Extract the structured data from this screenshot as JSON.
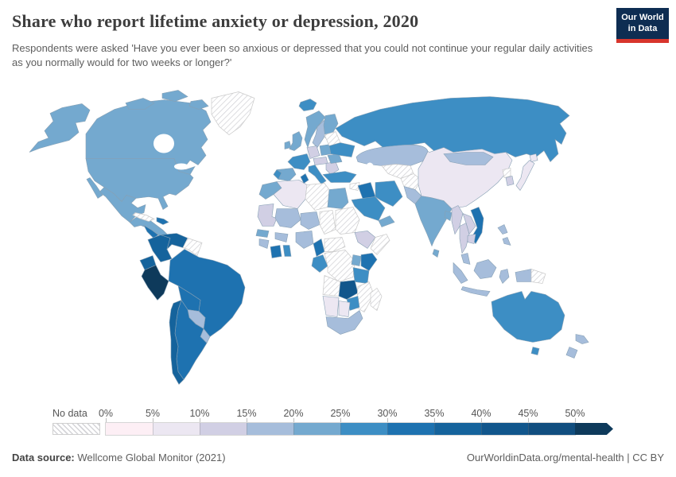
{
  "header": {
    "title": "Share who report lifetime anxiety or depression, 2020",
    "subtitle": "Respondents were asked 'Have you ever been so anxious or depressed that you could not continue your regular daily activities as you normally would for two weeks or longer?'",
    "logo": {
      "line1": "Our World",
      "line2": "in Data",
      "bg_color": "#0e2d52",
      "accent_color": "#d8352c"
    }
  },
  "footer": {
    "source_label": "Data source:",
    "source_value": "Wellcome Global Monitor (2021)",
    "attribution": "OurWorldinData.org/mental-health | CC BY"
  },
  "chart_data": {
    "type": "choropleth",
    "title": "Share who report lifetime anxiety or depression, 2020",
    "unit": "%",
    "legend": {
      "no_data_label": "No data",
      "tick_labels": [
        "0%",
        "5%",
        "10%",
        "15%",
        "20%",
        "25%",
        "30%",
        "35%",
        "40%",
        "45%",
        "50%"
      ],
      "bins": [
        {
          "label": "0-5%",
          "color": "#fdeff5"
        },
        {
          "label": "5-10%",
          "color": "#ece7f2"
        },
        {
          "label": "10-15%",
          "color": "#d1cfe4"
        },
        {
          "label": "15-20%",
          "color": "#a6bddb"
        },
        {
          "label": "20-25%",
          "color": "#74a9cf"
        },
        {
          "label": "25-30%",
          "color": "#3d8ec4"
        },
        {
          "label": "30-35%",
          "color": "#1e72b0"
        },
        {
          "label": "35-40%",
          "color": "#15639c"
        },
        {
          "label": "40-45%",
          "color": "#11568c"
        },
        {
          "label": "45-50%",
          "color": "#114e7f"
        },
        {
          "label": ">50%",
          "color": "#0e3a5b"
        }
      ],
      "no_data_pattern": "diagonal-hatch"
    },
    "regions": [
      {
        "id": "united-states",
        "name": "United States",
        "value": "20-25%"
      },
      {
        "id": "canada",
        "name": "Canada",
        "value": "20-25%"
      },
      {
        "id": "greenland",
        "name": "Greenland",
        "value": "No data"
      },
      {
        "id": "iceland",
        "name": "Iceland",
        "value": "25-30%"
      },
      {
        "id": "mexico",
        "name": "Mexico",
        "value": "20-25%"
      },
      {
        "id": "central-america",
        "name": "Central America",
        "value": "20-25%"
      },
      {
        "id": "nicaragua-costa-rica",
        "name": "Nicaragua / Costa Rica",
        "value": "30-35%"
      },
      {
        "id": "cuba",
        "name": "Cuba",
        "value": "No data"
      },
      {
        "id": "dominican-republic",
        "name": "Dominican Republic",
        "value": "30-35%"
      },
      {
        "id": "colombia",
        "name": "Colombia",
        "value": "35-40%"
      },
      {
        "id": "venezuela",
        "name": "Venezuela",
        "value": "35-40%"
      },
      {
        "id": "guyanas",
        "name": "Guyana / Suriname",
        "value": "No data"
      },
      {
        "id": "ecuador",
        "name": "Ecuador",
        "value": "35-40%"
      },
      {
        "id": "peru",
        "name": "Peru",
        "value": ">50%"
      },
      {
        "id": "brazil",
        "name": "Brazil",
        "value": "30-35%"
      },
      {
        "id": "bolivia",
        "name": "Bolivia",
        "value": "30-35%"
      },
      {
        "id": "paraguay",
        "name": "Paraguay",
        "value": "15-20%"
      },
      {
        "id": "uruguay",
        "name": "Uruguay",
        "value": "15-20%"
      },
      {
        "id": "argentina",
        "name": "Argentina",
        "value": "30-35%"
      },
      {
        "id": "chile",
        "name": "Chile",
        "value": "35-40%"
      },
      {
        "id": "norway",
        "name": "Norway",
        "value": "20-25%"
      },
      {
        "id": "sweden",
        "name": "Sweden",
        "value": "15-20%"
      },
      {
        "id": "finland",
        "name": "Finland",
        "value": "20-25%"
      },
      {
        "id": "denmark",
        "name": "Denmark",
        "value": "15-20%"
      },
      {
        "id": "united-kingdom",
        "name": "United Kingdom",
        "value": "20-25%"
      },
      {
        "id": "ireland",
        "name": "Ireland",
        "value": "20-25%"
      },
      {
        "id": "france",
        "name": "France",
        "value": "25-30%"
      },
      {
        "id": "spain",
        "name": "Spain",
        "value": "20-25%"
      },
      {
        "id": "portugal",
        "name": "Portugal",
        "value": "25-30%"
      },
      {
        "id": "germany",
        "name": "Germany",
        "value": "10-15%"
      },
      {
        "id": "poland",
        "name": "Poland",
        "value": "20-25%"
      },
      {
        "id": "central-europe",
        "name": "Central Europe",
        "value": "10-15%"
      },
      {
        "id": "italy",
        "name": "Italy",
        "value": "25-30%"
      },
      {
        "id": "balkans",
        "name": "Balkans",
        "value": "10-15%"
      },
      {
        "id": "greece",
        "name": "Greece",
        "value": "30-35%"
      },
      {
        "id": "romania",
        "name": "Romania",
        "value": "20-25%"
      },
      {
        "id": "belarus-baltics",
        "name": "Belarus / Baltics",
        "value": "No data"
      },
      {
        "id": "ukraine",
        "name": "Ukraine",
        "value": "25-30%"
      },
      {
        "id": "russia",
        "name": "Russia",
        "value": "25-30%"
      },
      {
        "id": "kazakhstan",
        "name": "Kazakhstan",
        "value": "15-20%"
      },
      {
        "id": "turkmenistan-uzbekistan",
        "name": "Turkmenistan / Uzbekistan",
        "value": "No data"
      },
      {
        "id": "afghanistan",
        "name": "Afghanistan",
        "value": "No data"
      },
      {
        "id": "pakistan",
        "name": "Pakistan",
        "value": "15-20%"
      },
      {
        "id": "turkey",
        "name": "Turkey",
        "value": "25-30%"
      },
      {
        "id": "syria",
        "name": "Syria",
        "value": "No data"
      },
      {
        "id": "iraq",
        "name": "Iraq",
        "value": "30-35%"
      },
      {
        "id": "saudi-arabia",
        "name": "Saudi Arabia",
        "value": "25-30%"
      },
      {
        "id": "yemen-oman",
        "name": "Yemen / Oman",
        "value": "20-25%"
      },
      {
        "id": "iran",
        "name": "Iran",
        "value": "25-30%"
      },
      {
        "id": "india",
        "name": "India",
        "value": "20-25%"
      },
      {
        "id": "sri-lanka",
        "name": "Sri Lanka",
        "value": "20-25%"
      },
      {
        "id": "bangladesh",
        "name": "Bangladesh",
        "value": "20-25%"
      },
      {
        "id": "china",
        "name": "China",
        "value": "5-10%"
      },
      {
        "id": "mongolia",
        "name": "Mongolia",
        "value": "15-20%"
      },
      {
        "id": "north-korea",
        "name": "North Korea",
        "value": "No data"
      },
      {
        "id": "south-korea",
        "name": "South Korea",
        "value": "10-15%"
      },
      {
        "id": "japan",
        "name": "Japan",
        "value": "5-10%"
      },
      {
        "id": "myanmar",
        "name": "Myanmar",
        "value": "10-15%"
      },
      {
        "id": "thailand",
        "name": "Thailand",
        "value": "10-15%"
      },
      {
        "id": "laos",
        "name": "Laos",
        "value": "10-15%"
      },
      {
        "id": "vietnam",
        "name": "Vietnam",
        "value": "30-35%"
      },
      {
        "id": "cambodia",
        "name": "Cambodia",
        "value": "10-15%"
      },
      {
        "id": "malaysia",
        "name": "Malaysia",
        "value": "15-20%"
      },
      {
        "id": "indonesia",
        "name": "Indonesia",
        "value": "15-20%"
      },
      {
        "id": "philippines",
        "name": "Philippines",
        "value": "15-20%"
      },
      {
        "id": "papua-region",
        "name": "Papua (west)",
        "value": "15-20%"
      },
      {
        "id": "papua-new-guinea",
        "name": "Papua New Guinea",
        "value": "No data"
      },
      {
        "id": "australia",
        "name": "Australia",
        "value": "25-30%"
      },
      {
        "id": "new-zealand",
        "name": "New Zealand",
        "value": "15-20%"
      },
      {
        "id": "morocco",
        "name": "Morocco",
        "value": "20-25%"
      },
      {
        "id": "algeria",
        "name": "Algeria",
        "value": "5-10%"
      },
      {
        "id": "tunisia",
        "name": "Tunisia",
        "value": "30-35%"
      },
      {
        "id": "libya",
        "name": "Libya",
        "value": "No data"
      },
      {
        "id": "egypt",
        "name": "Egypt",
        "value": "20-25%"
      },
      {
        "id": "mauritania",
        "name": "Mauritania",
        "value": "10-15%"
      },
      {
        "id": "mali",
        "name": "Mali",
        "value": "15-20%"
      },
      {
        "id": "niger",
        "name": "Niger",
        "value": "15-20%"
      },
      {
        "id": "chad",
        "name": "Chad",
        "value": "No data"
      },
      {
        "id": "sudan",
        "name": "Sudan",
        "value": "No data"
      },
      {
        "id": "ethiopia",
        "name": "Ethiopia",
        "value": "10-15%"
      },
      {
        "id": "somalia",
        "name": "Somalia",
        "value": "No data"
      },
      {
        "id": "senegal",
        "name": "Senegal",
        "value": "20-25%"
      },
      {
        "id": "guinea",
        "name": "Guinea",
        "value": "15-20%"
      },
      {
        "id": "ivory-coast",
        "name": "Ivory Coast",
        "value": "30-35%"
      },
      {
        "id": "ghana",
        "name": "Ghana",
        "value": "25-30%"
      },
      {
        "id": "burkina-faso",
        "name": "Burkina Faso",
        "value": "15-20%"
      },
      {
        "id": "nigeria",
        "name": "Nigeria",
        "value": "15-20%"
      },
      {
        "id": "cameroon",
        "name": "Cameroon",
        "value": "30-35%"
      },
      {
        "id": "central-african-republic",
        "name": "Central African Republic",
        "value": "No data"
      },
      {
        "id": "gabon-congo",
        "name": "Gabon / Congo",
        "value": "25-30%"
      },
      {
        "id": "dr-congo",
        "name": "Democratic Republic of Congo",
        "value": "No data"
      },
      {
        "id": "uganda",
        "name": "Uganda",
        "value": "20-25%"
      },
      {
        "id": "kenya",
        "name": "Kenya",
        "value": "30-35%"
      },
      {
        "id": "tanzania",
        "name": "Tanzania",
        "value": "25-30%"
      },
      {
        "id": "angola",
        "name": "Angola",
        "value": "No data"
      },
      {
        "id": "zambia",
        "name": "Zambia",
        "value": "40-45%"
      },
      {
        "id": "zimbabwe",
        "name": "Zimbabwe",
        "value": "25-30%"
      },
      {
        "id": "mozambique",
        "name": "Mozambique",
        "value": "No data"
      },
      {
        "id": "madagascar",
        "name": "Madagascar",
        "value": "No data"
      },
      {
        "id": "namibia",
        "name": "Namibia",
        "value": "5-10%"
      },
      {
        "id": "botswana",
        "name": "Botswana",
        "value": "5-10%"
      },
      {
        "id": "south-africa",
        "name": "South Africa",
        "value": "15-20%"
      }
    ]
  }
}
